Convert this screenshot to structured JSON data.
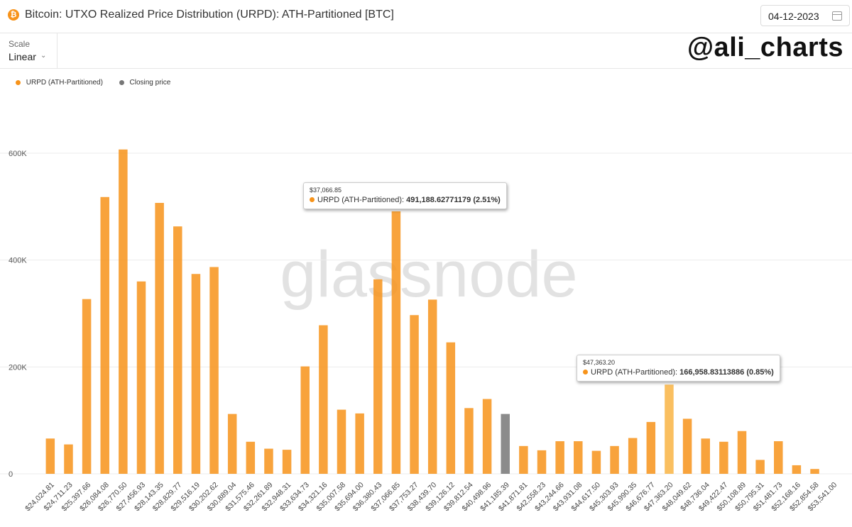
{
  "header": {
    "title": "Bitcoin: UTXO Realized Price Distribution (URPD): ATH-Partitioned [BTC]",
    "date": "04-12-2023",
    "btc_symbol": "₿"
  },
  "toolbar": {
    "scale_label": "Scale",
    "scale_value": "Linear",
    "chevron": "⌄"
  },
  "watermark": {
    "handle": "@ali_charts",
    "brand": "glassnode"
  },
  "legend": [
    {
      "label": "URPD (ATH-Partitioned)",
      "color": "#f7931a"
    },
    {
      "label": "Closing price",
      "color": "#777777"
    }
  ],
  "tooltips": [
    {
      "date": "$37,066.85",
      "series": "URPD (ATH-Partitioned)",
      "value": "491,188.62771179 (2.51%)"
    },
    {
      "date": "$47,363.20",
      "series": "URPD (ATH-Partitioned)",
      "value": "166,958.83113886 (0.85%)"
    }
  ],
  "chart_data": {
    "type": "bar",
    "y_ticks": [
      "0",
      "200K",
      "400K",
      "600K"
    ],
    "ylim": [
      0,
      600000
    ],
    "colors": {
      "default": "#f7931a",
      "closing": "#777777",
      "highlight": "#f9b444"
    },
    "closing_category": "$41,185.39",
    "highlight_category": "$47,363.20",
    "categories": [
      "$24,024.81",
      "$24,711.23",
      "$25,397.66",
      "$26,084.08",
      "$26,770.50",
      "$27,456.93",
      "$28,143.35",
      "$28,829.77",
      "$29,516.19",
      "$30,202.62",
      "$30,889.04",
      "$31,575.46",
      "$32,261.89",
      "$32,948.31",
      "$33,634.73",
      "$34,321.16",
      "$35,007.58",
      "$35,694.00",
      "$36,380.43",
      "$37,066.85",
      "$37,753.27",
      "$38,439.70",
      "$39,126.12",
      "$39,812.54",
      "$40,498.96",
      "$41,185.39",
      "$41,871.81",
      "$42,558.23",
      "$43,244.66",
      "$43,931.08",
      "$44,617.50",
      "$45,303.93",
      "$45,990.35",
      "$46,676.77",
      "$47,363.20",
      "$48,049.62",
      "$48,736.04",
      "$49,422.47",
      "$50,108.89",
      "$50,795.31",
      "$51,481.73",
      "$52,168.16",
      "$52,854.58",
      "$53,541.00"
    ],
    "values": [
      66000,
      55000,
      327000,
      518000,
      607000,
      360000,
      507000,
      463000,
      374000,
      387000,
      112000,
      60000,
      47000,
      45000,
      201000,
      278000,
      120000,
      113000,
      364000,
      491188.63,
      297000,
      326000,
      246000,
      123000,
      140000,
      112000,
      52000,
      44000,
      61000,
      61000,
      43000,
      52000,
      67000,
      97000,
      166958.83,
      103000,
      66000,
      60000,
      80000,
      26000,
      61000,
      16000,
      9000,
      0
    ]
  }
}
